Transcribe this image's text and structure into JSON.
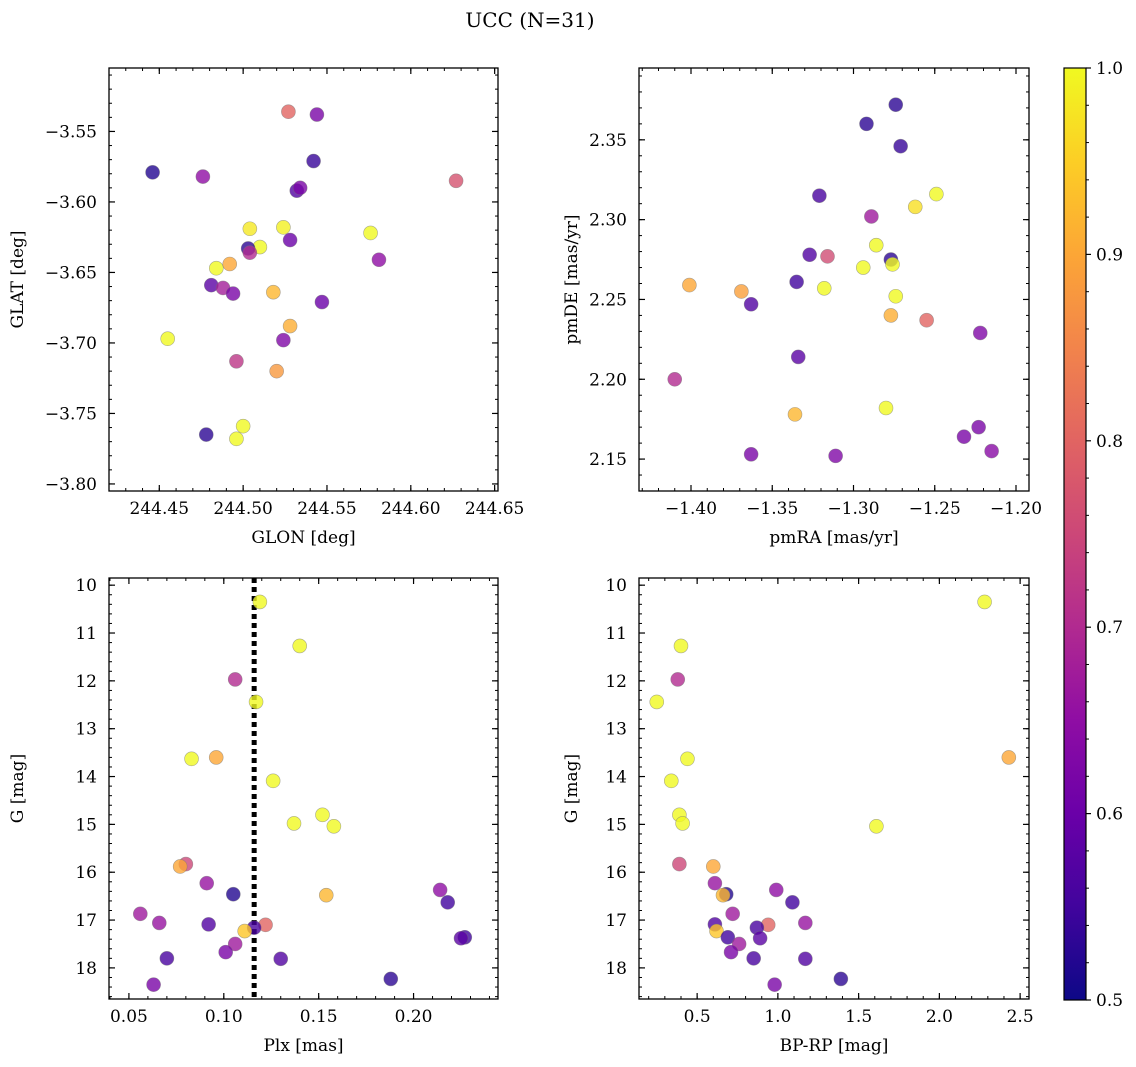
{
  "figure_title": "UCC (N=31)",
  "colorbar": {
    "colormap": "plasma",
    "range": [
      0.5,
      1.0
    ],
    "ticks": [
      0.5,
      0.6,
      0.7,
      0.8,
      0.9,
      1.0
    ],
    "tick_labels": [
      "0.5",
      "0.6",
      "0.7",
      "0.8",
      "0.9",
      "1.0"
    ]
  },
  "chart_data": [
    {
      "type": "scatter",
      "panel": "top-left",
      "xlabel": "GLON [deg]",
      "ylabel": "GLAT [deg]",
      "xlim": [
        244.42,
        244.652
      ],
      "ylim": [
        -3.805,
        -3.505
      ],
      "xticks": [
        244.45,
        244.5,
        244.55,
        244.6,
        244.65
      ],
      "xtick_labels": [
        "244.45",
        "244.50",
        "244.55",
        "244.60",
        "244.65"
      ],
      "yticks": [
        -3.8,
        -3.75,
        -3.7,
        -3.65,
        -3.6,
        -3.55
      ],
      "ytick_labels": [
        "−3.80",
        "−3.75",
        "−3.70",
        "−3.65",
        "−3.60",
        "−3.55"
      ],
      "x": [
        244.446,
        244.476,
        244.527,
        244.544,
        244.542,
        244.532,
        244.534,
        244.627,
        244.504,
        244.524,
        244.51,
        244.503,
        244.528,
        244.576,
        244.504,
        244.484,
        244.492,
        244.581,
        244.481,
        244.488,
        244.494,
        244.518,
        244.547,
        244.528,
        244.455,
        244.524,
        244.496,
        244.52,
        244.478,
        244.5,
        244.496
      ],
      "y": [
        -3.579,
        -3.582,
        -3.536,
        -3.538,
        -3.571,
        -3.592,
        -3.59,
        -3.585,
        -3.619,
        -3.618,
        -3.632,
        -3.633,
        -3.627,
        -3.622,
        -3.636,
        -3.647,
        -3.644,
        -3.641,
        -3.659,
        -3.661,
        -3.665,
        -3.664,
        -3.671,
        -3.688,
        -3.697,
        -3.698,
        -3.713,
        -3.72,
        -3.765,
        -3.759,
        -3.768
      ],
      "c": [
        0.52,
        0.65,
        0.8,
        0.62,
        0.54,
        0.57,
        0.62,
        0.77,
        0.98,
        0.99,
        1.0,
        0.53,
        0.6,
        1.0,
        0.7,
        1.0,
        0.9,
        0.65,
        0.58,
        0.68,
        0.62,
        0.92,
        0.6,
        0.91,
        1.0,
        0.63,
        0.72,
        0.88,
        0.53,
        1.0,
        1.0
      ]
    },
    {
      "type": "scatter",
      "panel": "top-right",
      "xlabel": "pmRA [mas/yr]",
      "ylabel": "pmDE [mas/yr]",
      "xlim": [
        -1.432,
        -1.192
      ],
      "ylim": [
        2.13,
        2.395
      ],
      "xticks": [
        -1.4,
        -1.35,
        -1.3,
        -1.25,
        -1.2
      ],
      "xtick_labels": [
        "−1.40",
        "−1.35",
        "−1.30",
        "−1.25",
        "−1.20"
      ],
      "yticks": [
        2.15,
        2.2,
        2.25,
        2.3,
        2.35
      ],
      "ytick_labels": [
        "2.15",
        "2.20",
        "2.25",
        "2.30",
        "2.35"
      ],
      "x": [
        -1.274,
        -1.292,
        -1.271,
        -1.321,
        -1.249,
        -1.262,
        -1.289,
        -1.286,
        -1.327,
        -1.316,
        -1.277,
        -1.294,
        -1.276,
        -1.335,
        -1.318,
        -1.274,
        -1.401,
        -1.369,
        -1.363,
        -1.277,
        -1.255,
        -1.222,
        -1.334,
        -1.41,
        -1.28,
        -1.336,
        -1.232,
        -1.223,
        -1.363,
        -1.311,
        -1.215
      ],
      "y": [
        2.372,
        2.36,
        2.346,
        2.315,
        2.316,
        2.308,
        2.302,
        2.284,
        2.278,
        2.277,
        2.275,
        2.27,
        2.272,
        2.261,
        2.257,
        2.252,
        2.259,
        2.255,
        2.247,
        2.24,
        2.237,
        2.229,
        2.214,
        2.2,
        2.182,
        2.178,
        2.164,
        2.17,
        2.153,
        2.152,
        2.155
      ],
      "c": [
        0.53,
        0.53,
        0.54,
        0.56,
        1.0,
        0.97,
        0.67,
        1.0,
        0.57,
        0.76,
        0.53,
        1.0,
        1.0,
        0.55,
        1.0,
        1.0,
        0.9,
        0.89,
        0.57,
        0.91,
        0.8,
        0.63,
        0.58,
        0.7,
        1.0,
        0.92,
        0.62,
        0.62,
        0.62,
        0.63,
        0.64
      ]
    },
    {
      "type": "scatter",
      "panel": "bottom-left",
      "xlabel": "Plx [mas]",
      "ylabel": "G [mag]",
      "xlim": [
        0.0395,
        0.2445
      ],
      "ylim": [
        18.65,
        9.85
      ],
      "y_inverted": true,
      "xticks": [
        0.05,
        0.1,
        0.15,
        0.2
      ],
      "xtick_labels": [
        "0.05",
        "0.10",
        "0.15",
        "0.20"
      ],
      "yticks": [
        10,
        11,
        12,
        13,
        14,
        15,
        16,
        17,
        18
      ],
      "ytick_labels": [
        "10",
        "11",
        "12",
        "13",
        "14",
        "15",
        "16",
        "17",
        "18"
      ],
      "vline": {
        "x": 0.116,
        "style": "dotted"
      },
      "x": [
        0.119,
        0.14,
        0.106,
        0.117,
        0.083,
        0.096,
        0.126,
        0.152,
        0.137,
        0.158,
        0.08,
        0.077,
        0.091,
        0.105,
        0.154,
        0.214,
        0.218,
        0.056,
        0.066,
        0.092,
        0.122,
        0.116,
        0.111,
        0.227,
        0.225,
        0.106,
        0.101,
        0.07,
        0.13,
        0.188,
        0.063
      ],
      "y": [
        10.35,
        11.27,
        11.97,
        12.44,
        13.63,
        13.6,
        14.09,
        14.8,
        14.98,
        15.04,
        15.83,
        15.88,
        16.23,
        16.46,
        16.48,
        16.37,
        16.63,
        16.87,
        17.06,
        17.09,
        17.1,
        17.16,
        17.23,
        17.36,
        17.38,
        17.5,
        17.67,
        17.8,
        17.81,
        18.23,
        18.35
      ],
      "c": [
        1.0,
        1.0,
        0.7,
        1.0,
        1.0,
        0.9,
        1.0,
        1.0,
        1.0,
        1.0,
        0.75,
        0.9,
        0.66,
        0.52,
        0.92,
        0.65,
        0.55,
        0.67,
        0.66,
        0.57,
        0.8,
        0.56,
        0.94,
        0.55,
        0.58,
        0.67,
        0.62,
        0.56,
        0.57,
        0.53,
        0.62
      ]
    },
    {
      "type": "scatter",
      "panel": "bottom-right",
      "xlabel": "BP-RP [mag]",
      "ylabel": "G [mag]",
      "xlim": [
        0.14,
        2.555
      ],
      "ylim": [
        18.65,
        9.85
      ],
      "y_inverted": true,
      "xticks": [
        0.5,
        1.0,
        1.5,
        2.0,
        2.5
      ],
      "xtick_labels": [
        "0.5",
        "1.0",
        "1.5",
        "2.0",
        "2.5"
      ],
      "yticks": [
        10,
        11,
        12,
        13,
        14,
        15,
        16,
        17,
        18
      ],
      "ytick_labels": [
        "10",
        "11",
        "12",
        "13",
        "14",
        "15",
        "16",
        "17",
        "18"
      ],
      "x": [
        2.28,
        0.4,
        0.38,
        0.25,
        0.44,
        2.43,
        0.34,
        0.39,
        0.41,
        1.61,
        0.39,
        0.6,
        0.61,
        0.68,
        0.66,
        0.99,
        1.09,
        0.72,
        1.17,
        0.61,
        0.94,
        0.87,
        0.62,
        0.69,
        0.89,
        0.76,
        0.71,
        0.85,
        1.17,
        1.39,
        0.98
      ],
      "y": [
        10.35,
        11.27,
        11.97,
        12.44,
        13.63,
        13.6,
        14.09,
        14.8,
        14.98,
        15.04,
        15.83,
        15.88,
        16.23,
        16.46,
        16.48,
        16.37,
        16.63,
        16.87,
        17.06,
        17.09,
        17.1,
        17.16,
        17.23,
        17.36,
        17.38,
        17.5,
        17.67,
        17.8,
        17.81,
        18.23,
        18.35
      ],
      "c": [
        1.0,
        1.0,
        0.7,
        1.0,
        1.0,
        0.9,
        1.0,
        1.0,
        1.0,
        1.0,
        0.75,
        0.9,
        0.66,
        0.52,
        0.92,
        0.65,
        0.55,
        0.67,
        0.66,
        0.57,
        0.8,
        0.56,
        0.94,
        0.55,
        0.58,
        0.67,
        0.62,
        0.56,
        0.57,
        0.53,
        0.62
      ]
    }
  ]
}
